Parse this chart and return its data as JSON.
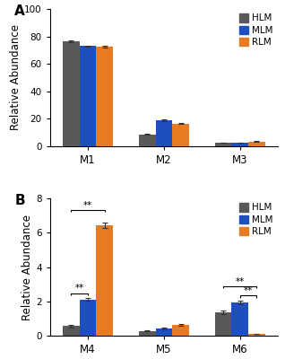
{
  "panel_A": {
    "categories": [
      "M1",
      "M2",
      "M3"
    ],
    "HLM": [
      76.5,
      8.5,
      2.5
    ],
    "MLM": [
      73.0,
      19.0,
      2.5
    ],
    "RLM": [
      72.5,
      16.5,
      3.5
    ],
    "HLM_err": [
      0.5,
      0.3,
      0.2
    ],
    "MLM_err": [
      0.4,
      0.5,
      0.2
    ],
    "RLM_err": [
      0.4,
      0.5,
      0.2
    ],
    "ylim": [
      0,
      100
    ],
    "yticks": [
      0,
      20,
      40,
      60,
      80,
      100
    ],
    "ylabel": "Relative Abundance"
  },
  "panel_B": {
    "categories": [
      "M4",
      "M5",
      "M6"
    ],
    "HLM": [
      0.55,
      0.28,
      1.35
    ],
    "MLM": [
      2.1,
      0.42,
      1.93
    ],
    "RLM": [
      6.45,
      0.62,
      0.1
    ],
    "HLM_err": [
      0.06,
      0.03,
      0.1
    ],
    "MLM_err": [
      0.08,
      0.05,
      0.1
    ],
    "RLM_err": [
      0.15,
      0.04,
      0.015
    ],
    "ylim": [
      0,
      8
    ],
    "yticks": [
      0,
      2,
      4,
      6,
      8
    ],
    "ylabel": "Relative Abundance"
  },
  "colors": {
    "HLM": "#595959",
    "MLM": "#1F4FBF",
    "RLM": "#E87A22"
  },
  "legend_labels": [
    "HLM",
    "MLM",
    "RLM"
  ],
  "bar_width": 0.22,
  "figsize": [
    3.18,
    4.0
  ],
  "dpi": 100
}
